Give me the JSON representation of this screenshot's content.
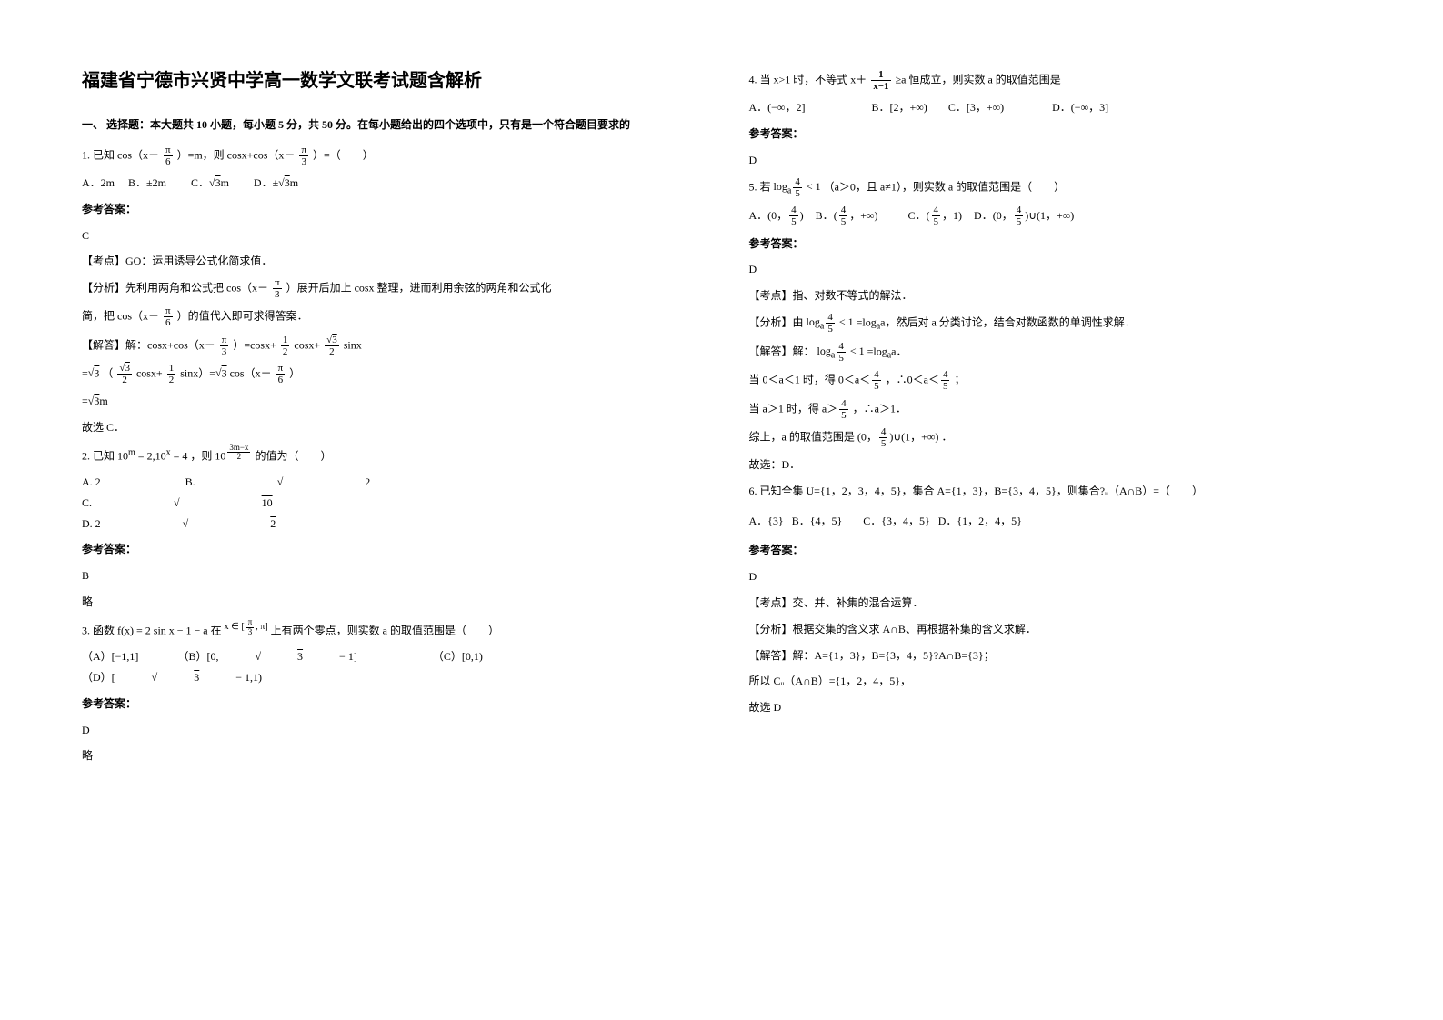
{
  "title": "福建省宁德市兴贤中学高一数学文联考试题含解析",
  "section_header": "一、 选择题：本大题共 10 小题，每小题 5 分，共 50 分。在每小题给出的四个选项中，只有是一个符合题目要求的",
  "ref_label": "参考答案：",
  "omit": "略",
  "q1": {
    "stem_a": "1. 已知 cos（x－",
    "stem_b": "）=m，则 cosx+cos（x－",
    "stem_c": "）=（　　）",
    "frac1_num": "π",
    "frac1_den": "6",
    "frac2_num": "π",
    "frac2_den": "3",
    "optA": "A．2m",
    "optB": "B．±2m",
    "optC_a": "C．",
    "optC_b": "3",
    "optC_c": "m",
    "optD_a": "D．±",
    "optD_b": "3",
    "optD_c": "m",
    "ans": "C",
    "kd": "【考点】GO：运用诱导公式化简求值．",
    "fx_a": "【分析】先利用两角和公式把 cos（x－",
    "fx_b": "）展开后加上 cosx 整理，进而利用余弦的两角和公式化",
    "fx_c": "简，把 cos（x－",
    "fx_d": "）的值代入即可求得答案．",
    "jd_a": "【解答】解：cosx+cos（x－",
    "jd_b": "）=cosx+",
    "jd_c": "cosx+",
    "jd_d": "sinx",
    "jd2_a": "=",
    "jd2_b": "（",
    "jd2_c": "cosx+",
    "jd2_d": "sinx）=",
    "jd2_e": "cos（x－",
    "jd2_f": "）",
    "jd3_a": "=",
    "jd3_b": "m",
    "jd4": "故选 C．",
    "fhalf_num": "1",
    "fhalf_den": "2",
    "fs3_num": "3",
    "fs3_den": "2"
  },
  "q2": {
    "stem_a": "2. 已知 ",
    "stem_b": "10",
    "stem_m": "m",
    "stem_c": " = 2,10",
    "stem_x": "x",
    "stem_d": " = 4 ，则 10",
    "exp_num": "3m−x",
    "exp_den": "2",
    "stem_e": " 的值为（　　）",
    "optA": "A. 2",
    "optB_a": "B. ",
    "optB_b": "2",
    "optC_a": "C. ",
    "optC_b": "10",
    "optD_a": "D. 2",
    "optD_b": "2",
    "ans": "B"
  },
  "q3": {
    "stem_a": "3. 函数 ",
    "fx": "f(x) = 2 sin x − 1 − a",
    "stem_b": " 在 ",
    "rng_a": "x ∈ [",
    "rng_num": "π",
    "rng_den": "3",
    "rng_b": ", π]",
    "stem_c": " 上有两个零点，则实数 a 的取值范围是（　　）",
    "optA": "（A）[−1,1]",
    "optB_a": "（B）[0,",
    "optB_b": "3",
    "optB_c": " − 1]",
    "optC": "（C）[0,1)",
    "optD_a": "（D）[",
    "optD_b": "3",
    "optD_c": " − 1,1)",
    "ans": "D"
  },
  "q4": {
    "stem_a": "4. 当 x>1 时，不等式 x＋",
    "frac_num": "1",
    "frac_den": "x−1",
    "stem_b": " ≥a 恒成立，则实数 a 的取值范围是",
    "optA": "A．(−∞，2]",
    "optB": "B．[2，+∞)",
    "optC": "C．[3，+∞)",
    "optD": "D．(−∞，3]",
    "ans": "D"
  },
  "q5": {
    "stem_a": "5. 若 ",
    "log_a": "log",
    "log_b": "a",
    "log_num": "4",
    "log_den": "5",
    "stem_b": " < 1",
    "stem_c": "（a＞0，且 a≠1），则实数 a 的取值范围是（　　）",
    "optA_a": "(0，",
    "optA_b": ")",
    "optB_a": "(",
    "optB_b": "，+∞)",
    "optC_a": "(",
    "optC_b": "，1)",
    "optD_a": "(0，",
    "optD_b": ")∪(1，+∞)",
    "f45_num": "4",
    "f45_den": "5",
    "ans": "D",
    "kd": "【考点】指、对数不等式的解法．",
    "fx_a": "【分析】由 ",
    "fx_b": " =log",
    "fx_c": "a，然后对 a 分类讨论，结合对数函数的单调性求解．",
    "jd_a": "【解答】解：",
    "jd_b": " =log",
    "jd_c": "a．",
    "jd2_a": "当 0＜a＜1 时，得 0＜a＜",
    "jd2_b": "，∴0＜a＜",
    "jd2_c": "；",
    "jd3_a": "当 a＞1 时，得 a＞",
    "jd3_b": "，∴a＞1．",
    "jd4_a": "综上，a 的取值范围是 ",
    "jd4_b": "．",
    "jd5": "故选：D．"
  },
  "q6": {
    "stem": "6. 已知全集 U={1，2，3，4，5}，集合 A={1，3}，B={3，4，5}，则集合?ᵤ（A∩B）=（　　）",
    "optA": "A．{3}",
    "optB": "B．{4，5}",
    "optC": "C．{3，4，5}",
    "optD": "D．{1，2，4，5}",
    "ans": "D",
    "kd": "【考点】交、并、补集的混合运算．",
    "fx": "【分析】根据交集的含义求 A∩B、再根据补集的含义求解．",
    "jd1": "【解答】解：A={1，3}，B={3，4，5}?A∩B={3}；",
    "jd2": "所以 Cᵤ（A∩B）={1，2，4，5}，",
    "jd3": "故选 D"
  }
}
